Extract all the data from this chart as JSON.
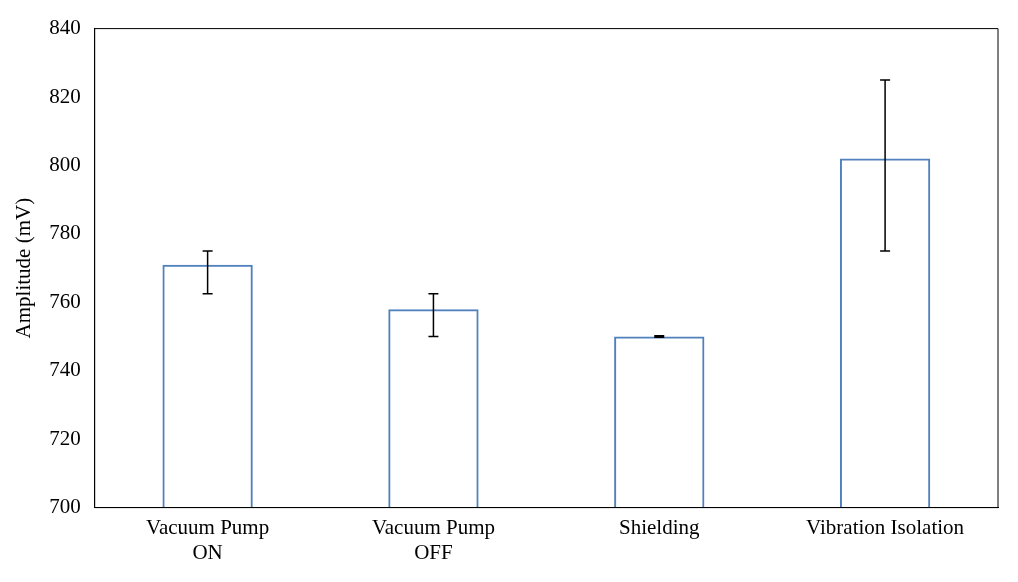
{
  "chart_data": {
    "type": "bar",
    "ylabel": "Amplitude (mV)",
    "categories": [
      "Vacuum Pump\nON",
      "Vacuum Pump\nOFF",
      "Shielding",
      "Vibration Isolation"
    ],
    "values": [
      771,
      758,
      750,
      802
    ],
    "errors": [
      [
        762.5,
        775
      ],
      [
        750,
        762.5
      ],
      [
        749.8,
        750.2
      ],
      [
        775,
        825
      ]
    ],
    "color": "#4f81bd",
    "ylim": [
      700,
      840
    ],
    "yticks": [
      700,
      720,
      740,
      760,
      780,
      800,
      820,
      840
    ],
    "grid": false,
    "legend": false
  }
}
